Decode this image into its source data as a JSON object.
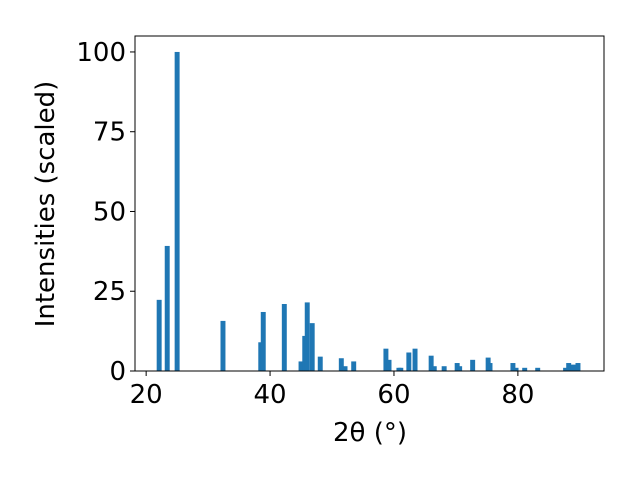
{
  "chart_data": {
    "type": "bar",
    "xlabel": "2θ (°)",
    "ylabel": "Intensities (scaled)",
    "x": [
      22.1,
      23.4,
      25.0,
      32.4,
      38.5,
      38.9,
      42.3,
      45.0,
      45.6,
      46.0,
      46.8,
      48.1,
      51.5,
      52.1,
      53.5,
      58.7,
      59.2,
      60.8,
      61.1,
      62.4,
      63.4,
      66.0,
      66.5,
      68.1,
      70.2,
      70.6,
      72.7,
      75.2,
      75.5,
      79.2,
      79.7,
      81.1,
      83.2,
      87.7,
      88.2,
      88.9,
      89.7
    ],
    "values": [
      22.3,
      39.2,
      100,
      15.7,
      9,
      18.5,
      21,
      3,
      11,
      21.5,
      15,
      4.5,
      4,
      1.5,
      3,
      7,
      3.5,
      1,
      1,
      5.8,
      7,
      4.8,
      1.5,
      1.5,
      2.5,
      1.5,
      3.5,
      4.2,
      2.5,
      2.5,
      1,
      1,
      1,
      1,
      2.5,
      2,
      2.5
    ],
    "color": "#1f77b4",
    "xlim": [
      18.2,
      93.9
    ],
    "xticks": [
      20,
      40,
      60,
      80
    ],
    "ylim": [
      0,
      105
    ],
    "yticks": [
      0,
      25,
      50,
      75,
      100
    ]
  }
}
